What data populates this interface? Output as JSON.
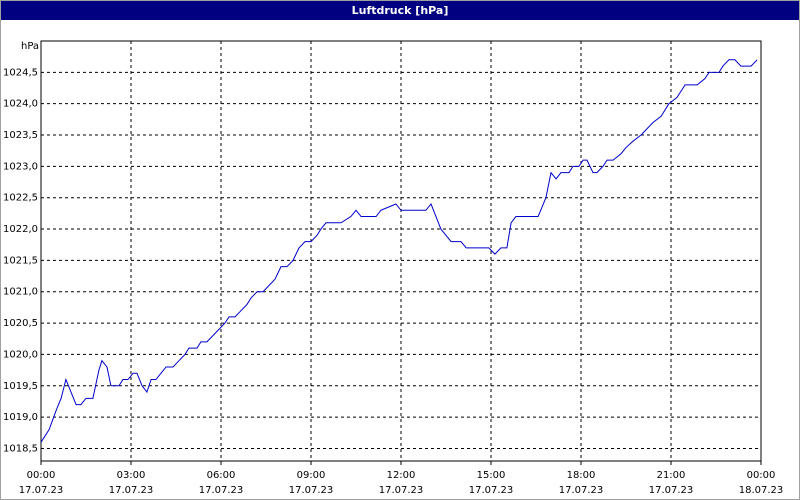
{
  "chart_data": {
    "type": "line",
    "title": "Luftdruck [hPa]",
    "y_unit": "hPa",
    "xlim": [
      0,
      24
    ],
    "ylim": [
      1018.3,
      1025.0
    ],
    "xticks": [
      {
        "value": 0,
        "label": "00:00",
        "date": "17.07.23"
      },
      {
        "value": 3,
        "label": "03:00",
        "date": "17.07.23"
      },
      {
        "value": 6,
        "label": "06:00",
        "date": "17.07.23"
      },
      {
        "value": 9,
        "label": "09:00",
        "date": "17.07.23"
      },
      {
        "value": 12,
        "label": "12:00",
        "date": "17.07.23"
      },
      {
        "value": 15,
        "label": "15:00",
        "date": "17.07.23"
      },
      {
        "value": 18,
        "label": "18:00",
        "date": "17.07.23"
      },
      {
        "value": 21,
        "label": "21:00",
        "date": "17.07.23"
      },
      {
        "value": 24,
        "label": "00:00",
        "date": "18.07.23"
      }
    ],
    "yticks": [
      {
        "value": 1018.5,
        "label": "1018,5"
      },
      {
        "value": 1019.0,
        "label": "1019,0"
      },
      {
        "value": 1019.5,
        "label": "1019,5"
      },
      {
        "value": 1020.0,
        "label": "1020,0"
      },
      {
        "value": 1020.5,
        "label": "1020,5"
      },
      {
        "value": 1021.0,
        "label": "1021,0"
      },
      {
        "value": 1021.5,
        "label": "1021,5"
      },
      {
        "value": 1022.0,
        "label": "1022,0"
      },
      {
        "value": 1022.5,
        "label": "1022,5"
      },
      {
        "value": 1023.0,
        "label": "1023,0"
      },
      {
        "value": 1023.5,
        "label": "1023,5"
      },
      {
        "value": 1024.0,
        "label": "1024,0"
      },
      {
        "value": 1024.5,
        "label": "1024,5"
      }
    ],
    "grid": true,
    "series": [
      {
        "color": "#0000cc",
        "x": [
          0,
          0.27,
          0.5,
          0.67,
          0.83,
          1,
          1.17,
          1.33,
          1.5,
          1.73,
          1.93,
          2.03,
          2.2,
          2.33,
          2.6,
          2.73,
          2.9,
          3.07,
          3.2,
          3.37,
          3.53,
          3.67,
          3.83,
          4,
          4.17,
          4.4,
          4.6,
          4.8,
          4.93,
          5.2,
          5.33,
          5.53,
          5.73,
          5.93,
          6.13,
          6.27,
          6.47,
          6.67,
          6.87,
          7,
          7.2,
          7.4,
          7.6,
          7.8,
          8,
          8.2,
          8.4,
          8.6,
          8.8,
          9,
          9.2,
          9.33,
          9.5,
          10,
          10.33,
          10.5,
          10.67,
          11.17,
          11.33,
          11.83,
          12,
          12.83,
          13,
          13.33,
          13.67,
          14,
          14.17,
          14.93,
          15.13,
          15.33,
          15.53,
          15.67,
          15.83,
          16.57,
          16.83,
          17,
          17.17,
          17.33,
          17.6,
          17.73,
          17.93,
          18.07,
          18.2,
          18.4,
          18.53,
          18.73,
          18.87,
          19.07,
          19.33,
          19.5,
          19.73,
          20,
          20.2,
          20.4,
          20.67,
          20.93,
          21.2,
          21.47,
          21.87,
          22.13,
          22.27,
          22.6,
          22.73,
          22.93,
          23.13,
          23.33,
          23.67,
          23.87
        ],
        "values": [
          1018.6,
          1018.8,
          1019.1,
          1019.3,
          1019.6,
          1019.4,
          1019.2,
          1019.2,
          1019.3,
          1019.3,
          1019.75,
          1019.9,
          1019.8,
          1019.5,
          1019.5,
          1019.6,
          1019.6,
          1019.7,
          1019.7,
          1019.5,
          1019.4,
          1019.6,
          1019.6,
          1019.7,
          1019.8,
          1019.8,
          1019.9,
          1020.0,
          1020.1,
          1020.1,
          1020.2,
          1020.2,
          1020.3,
          1020.4,
          1020.5,
          1020.6,
          1020.6,
          1020.7,
          1020.8,
          1020.9,
          1021.0,
          1021.0,
          1021.1,
          1021.2,
          1021.4,
          1021.4,
          1021.5,
          1021.7,
          1021.8,
          1021.8,
          1021.9,
          1022.0,
          1022.1,
          1022.1,
          1022.2,
          1022.3,
          1022.2,
          1022.2,
          1022.3,
          1022.4,
          1022.3,
          1022.3,
          1022.4,
          1022.0,
          1021.8,
          1021.8,
          1021.7,
          1021.7,
          1021.6,
          1021.7,
          1021.7,
          1022.1,
          1022.2,
          1022.2,
          1022.5,
          1022.9,
          1022.8,
          1022.9,
          1022.9,
          1023.0,
          1023.0,
          1023.1,
          1023.1,
          1022.9,
          1022.9,
          1023.0,
          1023.1,
          1023.1,
          1023.2,
          1023.3,
          1023.4,
          1023.5,
          1023.6,
          1023.7,
          1023.8,
          1024.0,
          1024.1,
          1024.3,
          1024.3,
          1024.4,
          1024.5,
          1024.5,
          1024.6,
          1024.7,
          1024.7,
          1024.6,
          1024.6,
          1024.7
        ]
      }
    ]
  }
}
